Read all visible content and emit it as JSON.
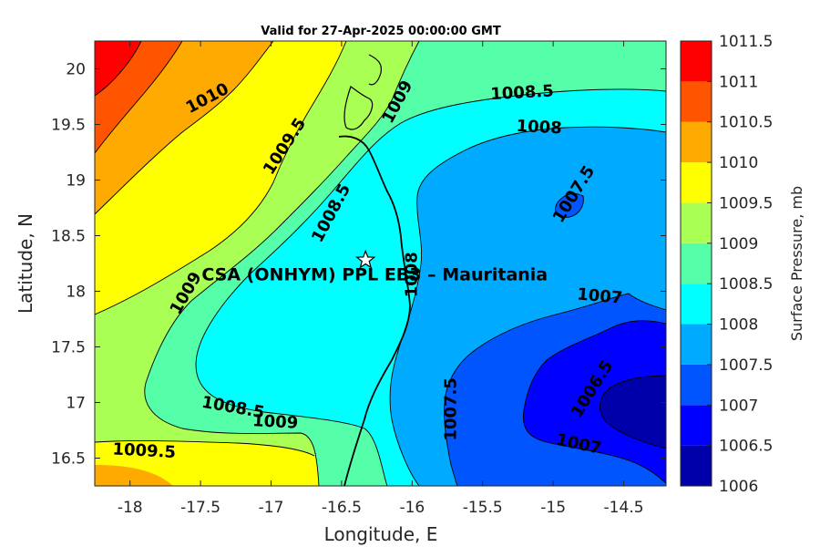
{
  "title": "Valid for 27-Apr-2025 00:00:00 GMT",
  "xlabel": "Longitude, E",
  "ylabel": "Latitude, N",
  "colorbar_label": "Surface Pressure, mb",
  "site_label": "CSA (ONHYM) PPL EB3  – Mauritania",
  "chart_data": {
    "type": "contour",
    "title": "Valid for 27-Apr-2025 00:00:00 GMT",
    "xlabel": "Longitude, E",
    "ylabel": "Latitude, N",
    "xlim": [
      -18.25,
      -14.2
    ],
    "ylim": [
      16.25,
      20.25
    ],
    "xticks": [
      "-18",
      "-17.5",
      "-17",
      "-16.5",
      "-16",
      "-15.5",
      "-15",
      "-14.5"
    ],
    "yticks": [
      "16.5",
      "17",
      "17.5",
      "18",
      "18.5",
      "19",
      "19.5",
      "20"
    ],
    "colorbar": {
      "label": "Surface Pressure, mb",
      "levels": [
        1006,
        1006.5,
        1007,
        1007.5,
        1008,
        1008.5,
        1009,
        1009.5,
        1010,
        1010.5,
        1011,
        1011.5
      ],
      "tick_labels": [
        "1006",
        "1006.5",
        "1007",
        "1007.5",
        "1008",
        "1008.5",
        "1009",
        "1009.5",
        "1010",
        "1010.5",
        "1011",
        "1011.5"
      ],
      "colors": [
        "#0000aa",
        "#0000ff",
        "#0055ff",
        "#00aaff",
        "#00ffff",
        "#55ffaa",
        "#aaff55",
        "#ffff00",
        "#ffaa00",
        "#ff5500",
        "#ff0000"
      ]
    },
    "contour_labels": [
      {
        "text": "1010",
        "lon": -17.45,
        "lat": 19.73,
        "angle": -28
      },
      {
        "text": "1009.5",
        "lon": -16.9,
        "lat": 19.3,
        "angle": -57
      },
      {
        "text": "1009",
        "lon": -16.1,
        "lat": 19.7,
        "angle": -62
      },
      {
        "text": "1008.5",
        "lon": -15.22,
        "lat": 19.78,
        "angle": -3
      },
      {
        "text": "1008",
        "lon": -15.1,
        "lat": 19.47,
        "angle": 3
      },
      {
        "text": "1007.5",
        "lon": -14.85,
        "lat": 18.87,
        "angle": -58
      },
      {
        "text": "1008.5",
        "lon": -16.57,
        "lat": 18.7,
        "angle": -62
      },
      {
        "text": "1008",
        "lon": -16,
        "lat": 18.15,
        "angle": -90
      },
      {
        "text": "1009",
        "lon": -17.6,
        "lat": 17.98,
        "angle": -60
      },
      {
        "text": "1007",
        "lon": -14.67,
        "lat": 17.95,
        "angle": 5
      },
      {
        "text": "1008.5",
        "lon": -17.27,
        "lat": 16.95,
        "angle": 10
      },
      {
        "text": "1009",
        "lon": -16.97,
        "lat": 16.82,
        "angle": 3
      },
      {
        "text": "1009.5",
        "lon": -17.9,
        "lat": 16.56,
        "angle": 3
      },
      {
        "text": "1007.5",
        "lon": -15.72,
        "lat": 16.94,
        "angle": -90
      },
      {
        "text": "1006.5",
        "lon": -14.72,
        "lat": 17.12,
        "angle": -58
      },
      {
        "text": "1007",
        "lon": -14.82,
        "lat": 16.62,
        "angle": 12
      }
    ],
    "site": {
      "name": "CSA (ONHYM) PPL EB3  – Mauritania",
      "lon": -16.33,
      "lat": 18.28,
      "marker": "star"
    }
  }
}
